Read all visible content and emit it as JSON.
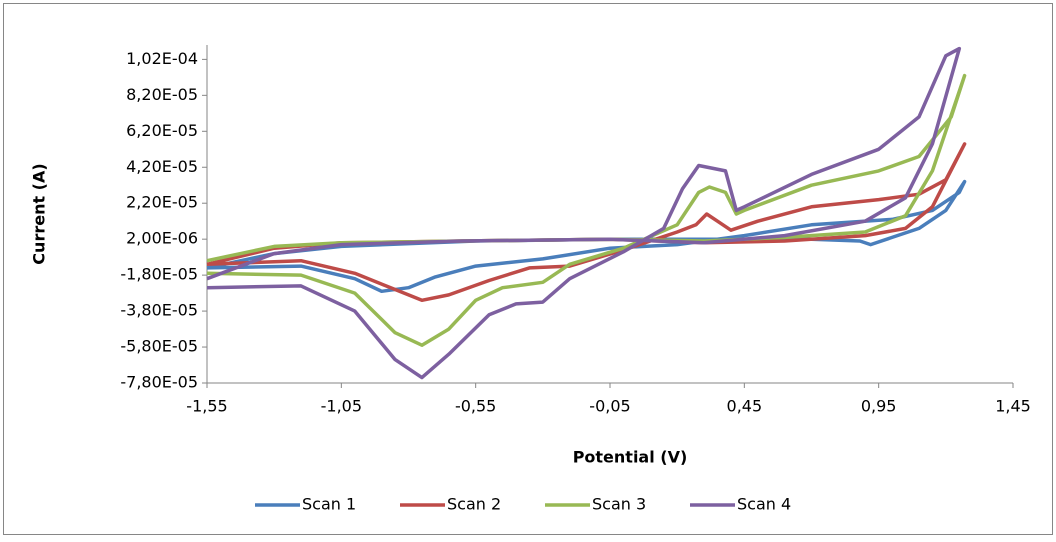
{
  "chart_data": {
    "type": "line",
    "xlabel": "Potential (V)",
    "ylabel": "Current (A)",
    "legend": "bottom",
    "grid": false,
    "xlim": [
      -1.55,
      1.45
    ],
    "xticks": [
      {
        "value": -1.55,
        "label": "-1,55"
      },
      {
        "value": -1.05,
        "label": "-1,05"
      },
      {
        "value": -0.55,
        "label": "-0,55"
      },
      {
        "value": -0.05,
        "label": "-0,05"
      },
      {
        "value": 0.45,
        "label": "0,45"
      },
      {
        "value": 0.95,
        "label": "0,95"
      },
      {
        "value": 1.45,
        "label": "1,45"
      }
    ],
    "ylim": [
      -7.8e-05,
      0.00011
    ],
    "yticks": [
      {
        "value": -7.8e-05,
        "label": "-7,80E-05"
      },
      {
        "value": -5.8e-05,
        "label": "-5,80E-05"
      },
      {
        "value": -3.8e-05,
        "label": "-3,80E-05"
      },
      {
        "value": -1.8e-05,
        "label": "-1,80E-05"
      },
      {
        "value": 2e-06,
        "label": "2,00E-06"
      },
      {
        "value": 2.2e-05,
        "label": "2,20E-05"
      },
      {
        "value": 4.2e-05,
        "label": "4,20E-05"
      },
      {
        "value": 6.2e-05,
        "label": "6,20E-05"
      },
      {
        "value": 8.2e-05,
        "label": "8,20E-05"
      },
      {
        "value": 0.000102,
        "label": "1,02E-04"
      }
    ],
    "series": [
      {
        "name": "Scan 1",
        "color": "#4a7ebb",
        "x": [
          -1.55,
          -1.3,
          -1.05,
          -0.55,
          -0.05,
          0.3,
          0.7,
          0.88,
          0.92,
          1.0,
          1.1,
          1.2,
          1.27,
          1.25,
          1.15,
          1.0,
          0.7,
          0.45,
          0.2,
          -0.05,
          -0.3,
          -0.55,
          -0.7,
          -0.8,
          -0.9,
          -1.0,
          -1.2,
          -1.55
        ],
        "values": [
          -1.4e-05,
          -6e-06,
          -2e-06,
          1e-06,
          2e-06,
          2e-06,
          2e-06,
          1e-06,
          -1e-06,
          3e-06,
          8e-06,
          1.8e-05,
          3.4e-05,
          2.8e-05,
          1.8e-05,
          1.3e-05,
          1e-05,
          4e-06,
          -1e-06,
          -3e-06,
          -9e-06,
          -1.3e-05,
          -1.9e-05,
          -2.5e-05,
          -2.7e-05,
          -2e-05,
          -1.3e-05,
          -1.4e-05
        ]
      },
      {
        "name": "Scan 2",
        "color": "#be4b48",
        "x": [
          -1.55,
          -1.3,
          -1.05,
          -0.6,
          -0.05,
          0.3,
          0.6,
          0.9,
          1.05,
          1.15,
          1.27,
          1.2,
          1.1,
          0.95,
          0.7,
          0.5,
          0.4,
          0.35,
          0.31,
          0.27,
          0.2,
          0.0,
          -0.2,
          -0.35,
          -0.5,
          -0.65,
          -0.75,
          -0.85,
          -1.0,
          -1.2,
          -1.55
        ],
        "values": [
          -1.2e-05,
          -3e-06,
          0,
          1e-06,
          2e-06,
          0,
          1e-06,
          4e-06,
          8e-06,
          2e-05,
          5.5e-05,
          3.5e-05,
          2.7e-05,
          2.4e-05,
          2e-05,
          1.2e-05,
          7e-06,
          1.2e-05,
          1.6e-05,
          1e-05,
          6e-06,
          -4e-06,
          -1.3e-05,
          -1.4e-05,
          -2.1e-05,
          -2.9e-05,
          -3.2e-05,
          -2.6e-05,
          -1.7e-05,
          -1e-05,
          -1.2e-05
        ]
      },
      {
        "name": "Scan 3",
        "color": "#98b954",
        "x": [
          -1.55,
          -1.3,
          -1.05,
          -0.6,
          -0.05,
          0.3,
          0.6,
          0.9,
          1.05,
          1.15,
          1.27,
          1.22,
          1.1,
          0.95,
          0.7,
          0.45,
          0.42,
          0.38,
          0.32,
          0.28,
          0.2,
          0.0,
          -0.2,
          -0.3,
          -0.45,
          -0.55,
          -0.65,
          -0.75,
          -0.85,
          -1.0,
          -1.2,
          -1.55
        ],
        "values": [
          -1e-05,
          -2e-06,
          0,
          1e-06,
          2e-06,
          1e-06,
          3e-06,
          6e-06,
          1.5e-05,
          4e-05,
          9.3e-05,
          7e-05,
          4.8e-05,
          4e-05,
          3.2e-05,
          1.8e-05,
          1.6e-05,
          2.8e-05,
          3.1e-05,
          2.8e-05,
          1e-05,
          -3e-06,
          -1.2e-05,
          -2.2e-05,
          -2.5e-05,
          -3.2e-05,
          -4.8e-05,
          -5.7e-05,
          -5e-05,
          -2.8e-05,
          -1.8e-05,
          -1.7e-05
        ]
      },
      {
        "name": "Scan 4",
        "color": "#7d60a0",
        "x": [
          -1.55,
          -1.3,
          -1.05,
          -0.6,
          -0.05,
          0.3,
          0.6,
          0.9,
          1.05,
          1.15,
          1.25,
          1.2,
          1.1,
          0.95,
          0.7,
          0.45,
          0.42,
          0.38,
          0.28,
          0.22,
          0.15,
          0.0,
          -0.2,
          -0.3,
          -0.4,
          -0.5,
          -0.65,
          -0.75,
          -0.85,
          -1.0,
          -1.2,
          -1.55
        ],
        "values": [
          -2e-05,
          -6e-06,
          -1e-06,
          1e-06,
          2e-06,
          0,
          4e-06,
          1.2e-05,
          2.5e-05,
          5.5e-05,
          0.000108,
          0.000104,
          7e-05,
          5.2e-05,
          3.8e-05,
          2e-05,
          1.8e-05,
          4e-05,
          4.3e-05,
          3e-05,
          8e-06,
          -5e-06,
          -2e-05,
          -3.3e-05,
          -3.4e-05,
          -4e-05,
          -6.2e-05,
          -7.5e-05,
          -6.5e-05,
          -3.8e-05,
          -2.4e-05,
          -2.5e-05
        ]
      }
    ]
  }
}
